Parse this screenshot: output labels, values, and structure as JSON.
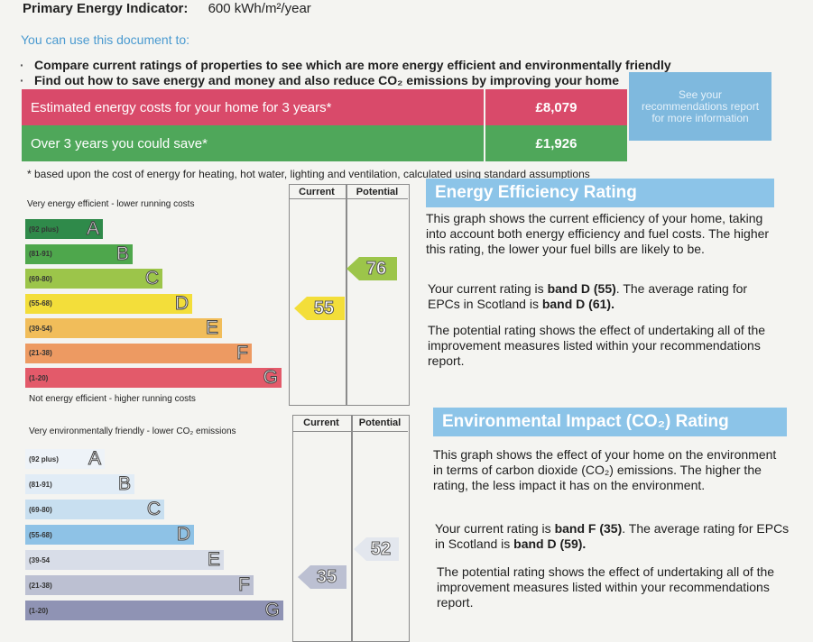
{
  "header": {
    "indicator_label": "Primary Energy Indicator:",
    "indicator_value": "600 kWh/m²/year"
  },
  "intro": {
    "title": "You can use this document to:",
    "bullets": [
      "Compare current ratings of properties to see which are more energy efficient and environmentally friendly",
      "Find out how to save energy and money and also reduce CO₂ emissions by improving your home"
    ]
  },
  "costs": {
    "estimated_label": "Estimated energy costs for your home for 3 years*",
    "estimated_value": "£8,079",
    "save_label": "Over 3 years you could save*",
    "save_value": "£1,926",
    "see_recommendations": "See your recommendations report for more information",
    "footnote": "* based upon the cost of energy for heating, hot water, lighting and ventilation, calculated using standard assumptions"
  },
  "energy": {
    "top_note": "Very energy efficient - lower running costs",
    "bottom_note": "Not energy efficient - higher running costs",
    "col_current": "Current",
    "col_potential": "Potential",
    "bands": [
      {
        "range": "(92 plus)",
        "letter": "A",
        "color": "#2f8a4a"
      },
      {
        "range": "(81-91)",
        "letter": "B",
        "color": "#4ea74c"
      },
      {
        "range": "(69-80)",
        "letter": "C",
        "color": "#9cc54a"
      },
      {
        "range": "(55-68)",
        "letter": "D",
        "color": "#f3de3a"
      },
      {
        "range": "(39-54)",
        "letter": "E",
        "color": "#f1bd5a"
      },
      {
        "range": "(21-38)",
        "letter": "F",
        "color": "#ed9a62"
      },
      {
        "range": "(1-20)",
        "letter": "G",
        "color": "#e35a6a"
      }
    ],
    "current_value": "55",
    "current_color": "#f3de3a",
    "potential_value": "76",
    "potential_color": "#9cc54a",
    "heading": "Energy Efficiency Rating",
    "p1": "This graph shows the current efficiency of your home, taking into account both energy efficiency and fuel costs. The higher this rating, the lower your fuel bills are likely to be.",
    "p2_pre": "Your current rating is ",
    "p2_band": "band D (55)",
    "p2_mid": ". The average rating for EPCs in Scotland is ",
    "p2_avg": "band D (61).",
    "p3": "The potential rating shows the effect of undertaking all of the improvement measures listed within your recommendations report."
  },
  "environment": {
    "top_note": "Very environmentally friendly - lower CO₂ emissions",
    "col_current": "Current",
    "col_potential": "Potential",
    "bands": [
      {
        "range": "(92 plus)",
        "letter": "A",
        "color": "#eef3f8"
      },
      {
        "range": "(81-91)",
        "letter": "B",
        "color": "#e1ecf6"
      },
      {
        "range": "(69-80)",
        "letter": "C",
        "color": "#c8dff0"
      },
      {
        "range": "(55-68)",
        "letter": "D",
        "color": "#8ec2e6"
      },
      {
        "range": "(39-54",
        "letter": "E",
        "color": "#d8dde8"
      },
      {
        "range": "(21-38)",
        "letter": "F",
        "color": "#bcc0d2"
      },
      {
        "range": "(1-20)",
        "letter": "G",
        "color": "#8f93b4"
      }
    ],
    "current_value": "35",
    "current_color": "#bcc0d2",
    "potential_value": "52",
    "potential_color": "#e3e7ee",
    "heading": "Environmental Impact (CO₂) Rating",
    "p1": "This graph shows the effect of your home on the environment in terms of carbon dioxide (CO₂) emissions. The higher the rating, the less impact it has on the environment.",
    "p2_pre": "Your current rating is ",
    "p2_band": "band F (35)",
    "p2_mid": ". The average rating for EPCs in Scotland is ",
    "p2_avg": "band D (59).",
    "p3": "The potential rating shows the effect of undertaking all of the improvement measures listed within your recommendations report."
  }
}
